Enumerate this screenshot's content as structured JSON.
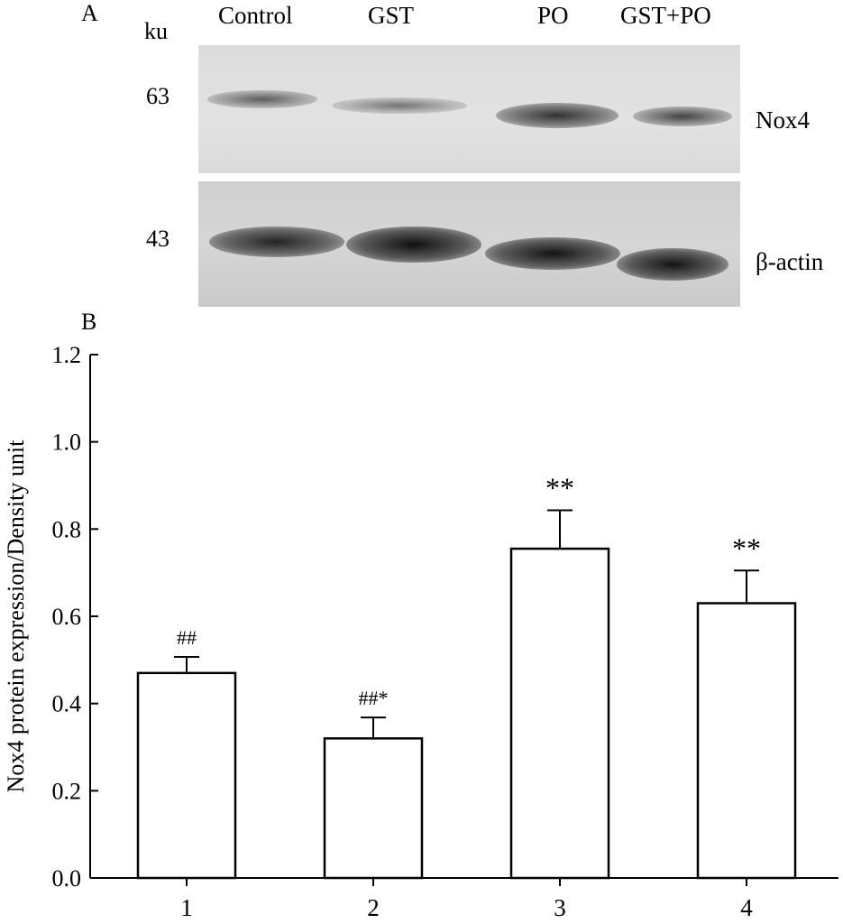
{
  "panel_a": {
    "label": "A",
    "unit_label": "ku",
    "lanes": [
      "Control",
      "GST",
      "PO",
      "GST+PO"
    ],
    "blots": [
      {
        "name": "Nox4",
        "mw": "63"
      },
      {
        "name": "β-actin",
        "mw": "43"
      }
    ]
  },
  "panel_b": {
    "label": "B"
  },
  "chart_data": {
    "type": "bar",
    "title": "",
    "xlabel": "",
    "ylabel": "Nox4 protein expression/Density unit",
    "categories": [
      "1",
      "2",
      "3",
      "4"
    ],
    "values": [
      0.47,
      0.32,
      0.755,
      0.63
    ],
    "errors": [
      0.037,
      0.048,
      0.088,
      0.075
    ],
    "annotations": [
      "##",
      "##*",
      "**",
      "**"
    ],
    "ylim": [
      0,
      1.2
    ],
    "yticks": [
      "0.0",
      "0.2",
      "0.4",
      "0.6",
      "0.8",
      "1.0",
      "1.2"
    ],
    "grid": false,
    "colors": {
      "bar_fill": "#ffffff",
      "bar_stroke": "#000000"
    }
  }
}
